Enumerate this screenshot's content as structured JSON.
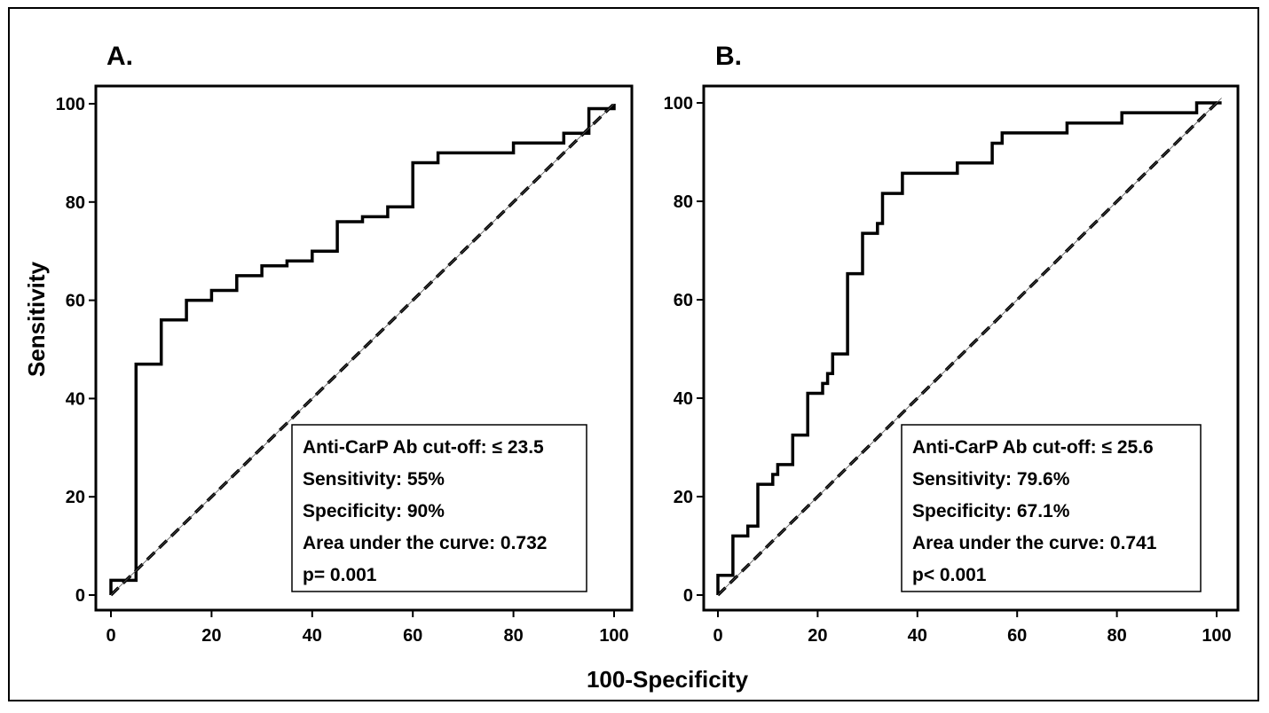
{
  "figure": {
    "ylabel": "Sensitivity",
    "xlabel": "100-Specificity"
  },
  "chart_data": [
    {
      "type": "line",
      "panel_label": "A.",
      "xlabel": "100-Specificity",
      "ylabel": "Sensitivity",
      "xlim": [
        0,
        100
      ],
      "ylim": [
        0,
        100
      ],
      "xticks": [
        "0",
        "20",
        "40",
        "60",
        "80",
        "100"
      ],
      "yticks": [
        "0",
        "20",
        "40",
        "60",
        "80",
        "100"
      ],
      "grid": false,
      "series": [
        {
          "style": "solid-step",
          "points": [
            [
              0,
              0
            ],
            [
              0,
              3
            ],
            [
              5,
              3
            ],
            [
              5,
              47
            ],
            [
              10,
              47
            ],
            [
              10,
              56
            ],
            [
              15,
              56
            ],
            [
              15,
              60
            ],
            [
              20,
              60
            ],
            [
              20,
              62
            ],
            [
              25,
              62
            ],
            [
              25,
              65
            ],
            [
              30,
              65
            ],
            [
              30,
              67
            ],
            [
              35,
              67
            ],
            [
              35,
              68
            ],
            [
              40,
              68
            ],
            [
              40,
              70
            ],
            [
              45,
              70
            ],
            [
              45,
              76
            ],
            [
              50,
              76
            ],
            [
              50,
              77
            ],
            [
              55,
              77
            ],
            [
              55,
              79
            ],
            [
              60,
              79
            ],
            [
              60,
              88
            ],
            [
              65,
              88
            ],
            [
              65,
              90
            ],
            [
              80,
              90
            ],
            [
              80,
              92
            ],
            [
              90,
              92
            ],
            [
              90,
              94
            ],
            [
              95,
              94
            ],
            [
              95,
              99
            ],
            [
              100,
              99
            ],
            [
              100,
              100
            ]
          ]
        },
        {
          "style": "dashed-diagonal",
          "points": [
            [
              0,
              0
            ],
            [
              100,
              100
            ]
          ]
        }
      ],
      "annotation_lines": [
        "Anti-CarP Ab cut-off: ≤ 23.5",
        "Sensitivity: 55%",
        "Specificity: 90%",
        "Area under the curve: 0.732",
        "p= 0.001"
      ]
    },
    {
      "type": "line",
      "panel_label": "B.",
      "xlabel": "100-Specificity",
      "ylabel": "Sensitivity",
      "xlim": [
        0,
        100
      ],
      "ylim": [
        0,
        100
      ],
      "xticks": [
        "0",
        "20",
        "40",
        "60",
        "80",
        "100"
      ],
      "yticks": [
        "0",
        "20",
        "40",
        "60",
        "80",
        "100"
      ],
      "grid": false,
      "series": [
        {
          "style": "solid-step",
          "points": [
            [
              0,
              0
            ],
            [
              0,
              4
            ],
            [
              3,
              4
            ],
            [
              3,
              12
            ],
            [
              6,
              12
            ],
            [
              6,
              14
            ],
            [
              8,
              14
            ],
            [
              8,
              22.5
            ],
            [
              11,
              22.5
            ],
            [
              11,
              24.5
            ],
            [
              12,
              24.5
            ],
            [
              12,
              26.5
            ],
            [
              15,
              26.5
            ],
            [
              15,
              32.5
            ],
            [
              18,
              32.5
            ],
            [
              18,
              41
            ],
            [
              21,
              41
            ],
            [
              21,
              43
            ],
            [
              22,
              43
            ],
            [
              22,
              45
            ],
            [
              23,
              45
            ],
            [
              23,
              49
            ],
            [
              26,
              49
            ],
            [
              26,
              65.3
            ],
            [
              29,
              65.3
            ],
            [
              29,
              73.5
            ],
            [
              32,
              73.5
            ],
            [
              32,
              75.5
            ],
            [
              33,
              75.5
            ],
            [
              33,
              81.6
            ],
            [
              37,
              81.6
            ],
            [
              37,
              85.7
            ],
            [
              48,
              85.7
            ],
            [
              48,
              87.8
            ],
            [
              55,
              87.8
            ],
            [
              55,
              91.8
            ],
            [
              57,
              91.8
            ],
            [
              57,
              93.9
            ],
            [
              70,
              93.9
            ],
            [
              70,
              95.9
            ],
            [
              81,
              95.9
            ],
            [
              81,
              98
            ],
            [
              96,
              98
            ],
            [
              96,
              100
            ],
            [
              101,
              100
            ]
          ]
        },
        {
          "style": "dashed-diagonal",
          "points": [
            [
              0,
              0
            ],
            [
              101,
              101
            ]
          ]
        }
      ],
      "annotation_lines": [
        "Anti-CarP Ab cut-off: ≤ 25.6",
        "Sensitivity: 79.6%",
        "Specificity: 67.1%",
        "Area under the curve: 0.741",
        "p< 0.001"
      ]
    }
  ]
}
